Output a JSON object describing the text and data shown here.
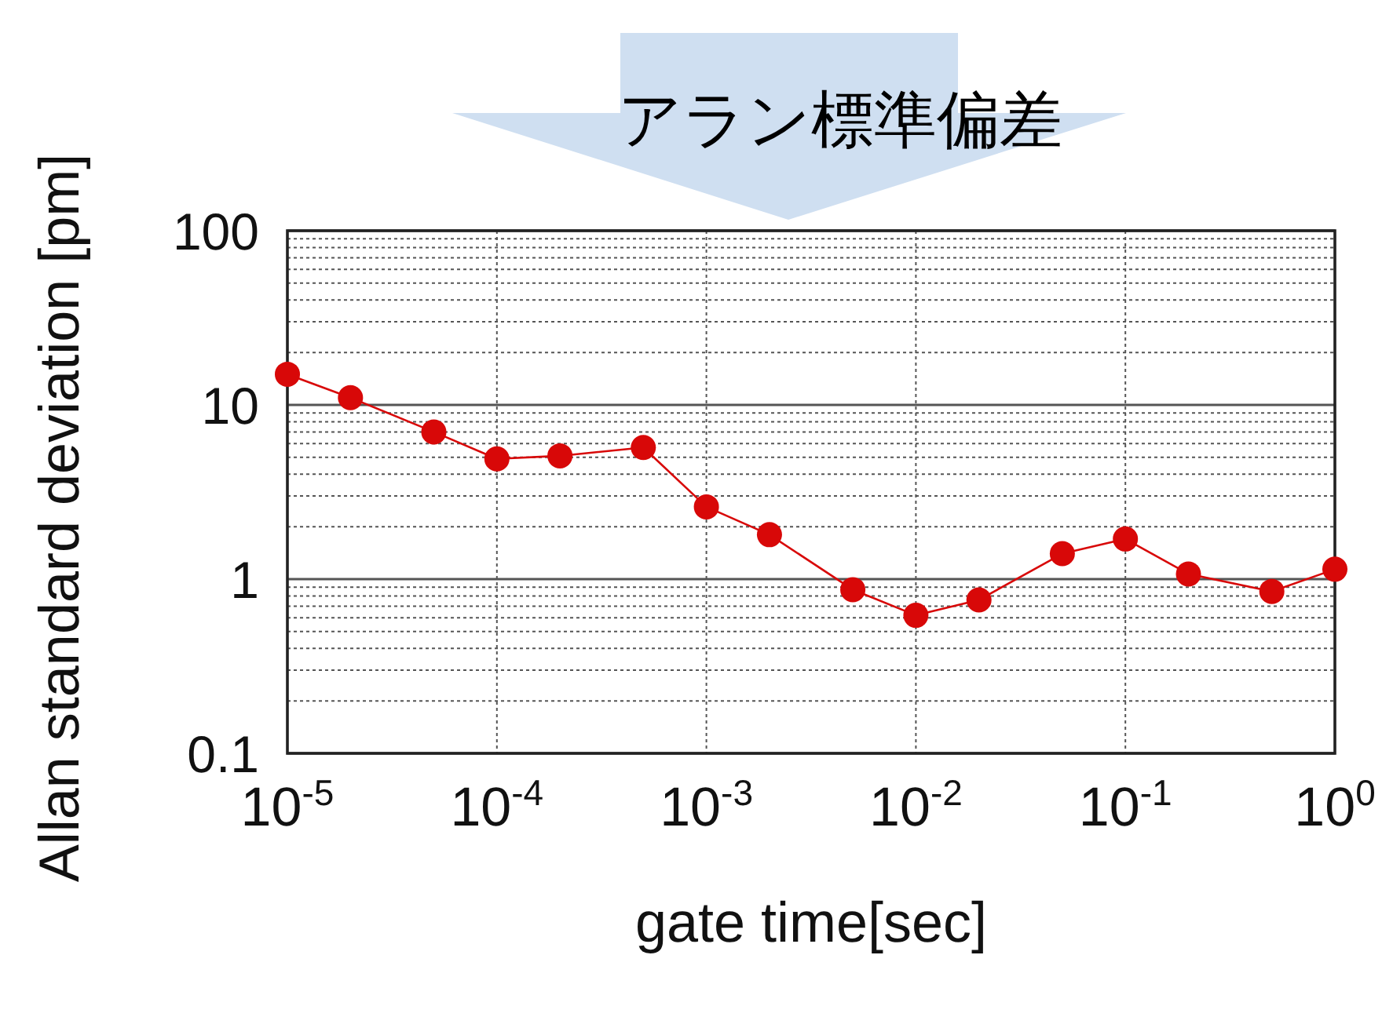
{
  "chart_data": {
    "type": "line",
    "title": "アラン標準偏差",
    "xlabel": "gate time[sec]",
    "ylabel": "Allan standard deviation [pm]",
    "log": "xy",
    "grid": true,
    "marker": "circle",
    "line_style": "solid",
    "xlim": [
      1e-05,
      1
    ],
    "ylim": [
      0.1,
      100
    ],
    "xticks": [
      {
        "value": 1e-05,
        "label": "10$^{-5}$"
      },
      {
        "value": 0.0001,
        "label": "10$^{-4}$"
      },
      {
        "value": 0.001,
        "label": "10$^{-3}$"
      },
      {
        "value": 0.01,
        "label": "10$^{-2}$"
      },
      {
        "value": 0.1,
        "label": "10$^{-1}$"
      },
      {
        "value": 1,
        "label": "10$^{0}$"
      }
    ],
    "yticks": [
      0.1,
      {
        "value": 0.2,
        "label": null
      },
      {
        "value": 0.3,
        "label": null
      },
      {
        "value": 0.4,
        "label": null
      },
      {
        "value": 0.5,
        "label": null
      },
      {
        "value": 0.6,
        "label": null
      },
      {
        "value": 0.7,
        "label": null
      },
      {
        "value": 0.8,
        "label": null
      },
      {
        "value": 0.9,
        "label": null
      },
      1,
      {
        "value": 2,
        "label": null
      },
      {
        "value": 3,
        "label": null
      },
      {
        "value": 4,
        "label": null
      },
      {
        "value": 5,
        "label": null
      },
      {
        "value": 6,
        "label": null
      },
      {
        "value": 7,
        "label": null
      },
      {
        "value": 8,
        "label": null
      },
      {
        "value": 9,
        "label": null
      },
      10,
      {
        "value": 20,
        "label": null
      },
      {
        "value": 30,
        "label": null
      },
      {
        "value": 40,
        "label": null
      },
      {
        "value": 50,
        "label": null
      },
      {
        "value": 60,
        "label": null
      },
      {
        "value": 70,
        "label": null
      },
      {
        "value": 80,
        "label": null
      },
      {
        "value": 90,
        "label": null
      },
      100
    ],
    "x": [
      1e-05,
      2e-05,
      5e-05,
      0.0001,
      0.0002,
      0.0005,
      0.001,
      0.002,
      0.005,
      0.01,
      0.02,
      0.05,
      0.1,
      0.2,
      0.5,
      1
    ],
    "series": [
      {
        "color": "#d80808",
        "values": [
          15,
          11,
          7,
          4.9,
          5.1,
          5.7,
          2.6,
          1.8,
          0.87,
          0.62,
          0.76,
          1.4,
          1.7,
          1.07,
          0.85,
          1.14
        ]
      }
    ]
  }
}
